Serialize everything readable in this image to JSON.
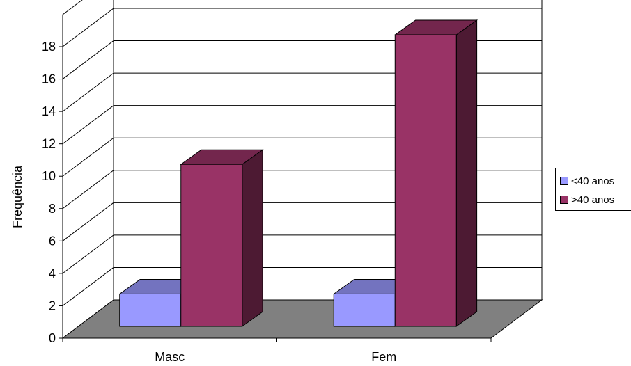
{
  "chart_data": {
    "type": "bar",
    "categories": [
      "Masc",
      "Fem"
    ],
    "series": [
      {
        "name": "<40 anos",
        "values": [
          2,
          2
        ],
        "color": "#9999ff"
      },
      {
        "name": ">40 anos",
        "values": [
          10,
          18
        ],
        "color": "#993366"
      }
    ],
    "title": "",
    "xlabel": "",
    "ylabel": "Frequência",
    "ylim": [
      0,
      18
    ],
    "yticks": [
      0,
      2,
      4,
      6,
      8,
      10,
      12,
      14,
      16,
      18
    ],
    "grid": true,
    "legend_position": "right",
    "floor_color": "#808080"
  }
}
